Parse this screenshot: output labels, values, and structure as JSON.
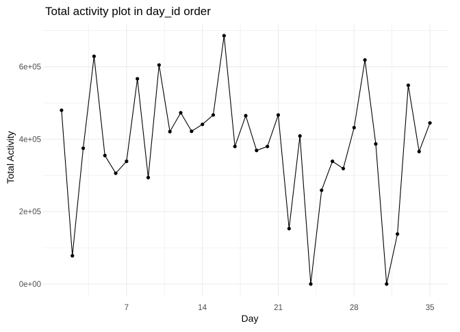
{
  "chart_data": {
    "type": "line",
    "title": "Total activity plot in day_id order",
    "xlabel": "Day",
    "ylabel": "Total Activity",
    "x": [
      1,
      2,
      3,
      4,
      5,
      6,
      7,
      8,
      9,
      10,
      11,
      12,
      13,
      14,
      15,
      16,
      17,
      18,
      19,
      20,
      21,
      22,
      23,
      24,
      25,
      26,
      27,
      28,
      29,
      30,
      31,
      32,
      33,
      34,
      35
    ],
    "y": [
      480000,
      78000,
      375000,
      629000,
      355000,
      306000,
      339000,
      567000,
      294000,
      605000,
      421000,
      473000,
      422000,
      441000,
      467000,
      686000,
      380000,
      465000,
      369000,
      380000,
      467000,
      153000,
      409000,
      0,
      259000,
      339000,
      319000,
      432000,
      619000,
      387000,
      0,
      138000,
      549000,
      366000,
      445000
    ],
    "xticks": [
      7,
      14,
      21,
      28,
      35
    ],
    "xtick_labels": [
      "7",
      "14",
      "21",
      "28",
      "35"
    ],
    "yticks": [
      0,
      200000,
      400000,
      600000
    ],
    "ytick_labels": [
      "0e+00",
      "2e+05",
      "4e+05",
      "6e+05"
    ],
    "xlim": [
      -0.7,
      36.7
    ],
    "ylim": [
      -34300,
      720300
    ],
    "grid": true,
    "legend": "none",
    "colors": {
      "line": "#000000",
      "point": "#000000",
      "grid": "#ebebeb",
      "text": "#4d4d4d",
      "title": "#000000"
    }
  }
}
